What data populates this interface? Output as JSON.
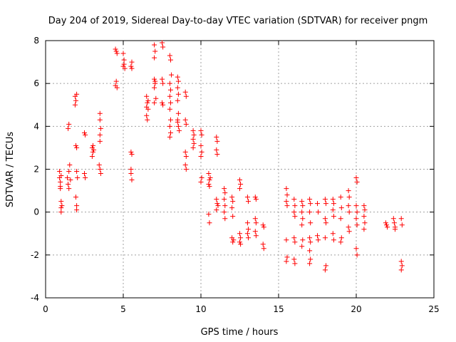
{
  "chart_data": {
    "type": "scatter",
    "title": "Day 204 of 2019, Sidereal Day-to-day VTEC variation (SDTVAR) for receiver pngm",
    "xlabel": "GPS time / hours",
    "ylabel": "SDTVAR / TECUs",
    "xlim": [
      0,
      25
    ],
    "ylim": [
      -4,
      8
    ],
    "xticks": [
      0,
      5,
      10,
      15,
      20,
      25
    ],
    "yticks": [
      -4,
      -2,
      0,
      2,
      4,
      6,
      8
    ],
    "grid": true,
    "marker": "plus",
    "color": "#ff0000",
    "series": [
      {
        "name": "SDTVAR",
        "points": [
          [
            0.9,
            1.9
          ],
          [
            0.9,
            1.6
          ],
          [
            0.95,
            1.4
          ],
          [
            0.95,
            1.1
          ],
          [
            1.0,
            0.5
          ],
          [
            1.0,
            0.2
          ],
          [
            1.0,
            0.0
          ],
          [
            1.0,
            1.7
          ],
          [
            0.95,
            1.2
          ],
          [
            1.05,
            0.3
          ],
          [
            1.4,
            1.6
          ],
          [
            1.45,
            1.3
          ],
          [
            1.5,
            1.9
          ],
          [
            1.5,
            1.1
          ],
          [
            1.45,
            3.9
          ],
          [
            1.5,
            4.1
          ],
          [
            1.55,
            2.2
          ],
          [
            1.6,
            1.5
          ],
          [
            1.9,
            5.4
          ],
          [
            1.95,
            5.2
          ],
          [
            2.0,
            5.5
          ],
          [
            1.9,
            5.0
          ],
          [
            1.95,
            3.1
          ],
          [
            2.0,
            3.0
          ],
          [
            1.95,
            0.7
          ],
          [
            2.0,
            0.3
          ],
          [
            2.0,
            0.1
          ],
          [
            2.0,
            1.9
          ],
          [
            2.05,
            1.6
          ],
          [
            2.5,
            3.7
          ],
          [
            2.55,
            3.6
          ],
          [
            2.5,
            1.8
          ],
          [
            2.55,
            1.6
          ],
          [
            3.0,
            3.0
          ],
          [
            3.05,
            2.8
          ],
          [
            3.0,
            2.6
          ],
          [
            3.1,
            2.9
          ],
          [
            3.05,
            3.1
          ],
          [
            3.5,
            4.6
          ],
          [
            3.5,
            4.3
          ],
          [
            3.55,
            3.9
          ],
          [
            3.5,
            3.6
          ],
          [
            3.5,
            3.3
          ],
          [
            3.45,
            2.2
          ],
          [
            3.5,
            2.0
          ],
          [
            3.55,
            1.8
          ],
          [
            4.5,
            7.6
          ],
          [
            4.55,
            7.5
          ],
          [
            4.6,
            7.4
          ],
          [
            4.5,
            5.9
          ],
          [
            4.55,
            6.1
          ],
          [
            4.6,
            5.8
          ],
          [
            5.0,
            7.4
          ],
          [
            5.05,
            7.1
          ],
          [
            5.0,
            6.8
          ],
          [
            5.1,
            6.7
          ],
          [
            5.05,
            6.9
          ],
          [
            5.5,
            6.8
          ],
          [
            5.55,
            6.7
          ],
          [
            5.55,
            7.0
          ],
          [
            5.5,
            2.8
          ],
          [
            5.55,
            2.7
          ],
          [
            5.5,
            1.8
          ],
          [
            5.55,
            1.5
          ],
          [
            5.5,
            2.0
          ],
          [
            6.5,
            5.4
          ],
          [
            6.55,
            5.1
          ],
          [
            6.6,
            4.8
          ],
          [
            6.5,
            4.5
          ],
          [
            6.55,
            4.3
          ],
          [
            6.6,
            5.2
          ],
          [
            6.5,
            4.9
          ],
          [
            7.0,
            7.8
          ],
          [
            7.05,
            7.5
          ],
          [
            7.0,
            7.2
          ],
          [
            7.0,
            6.2
          ],
          [
            7.05,
            6.0
          ],
          [
            7.0,
            5.8
          ],
          [
            7.1,
            5.3
          ],
          [
            7.0,
            5.1
          ],
          [
            7.05,
            6.1
          ],
          [
            7.5,
            7.9
          ],
          [
            7.55,
            7.7
          ],
          [
            7.5,
            6.2
          ],
          [
            7.55,
            6.0
          ],
          [
            7.5,
            5.1
          ],
          [
            7.55,
            5.0
          ],
          [
            8.0,
            7.3
          ],
          [
            8.05,
            7.1
          ],
          [
            8.0,
            6.0
          ],
          [
            8.05,
            5.7
          ],
          [
            8.0,
            5.4
          ],
          [
            8.05,
            5.1
          ],
          [
            8.0,
            4.8
          ],
          [
            8.05,
            4.3
          ],
          [
            8.0,
            4.0
          ],
          [
            8.05,
            3.7
          ],
          [
            8.0,
            3.5
          ],
          [
            8.1,
            6.4
          ],
          [
            8.5,
            6.3
          ],
          [
            8.55,
            6.1
          ],
          [
            8.5,
            5.8
          ],
          [
            8.55,
            5.5
          ],
          [
            8.5,
            5.2
          ],
          [
            8.55,
            4.6
          ],
          [
            8.5,
            4.3
          ],
          [
            8.55,
            4.0
          ],
          [
            8.6,
            3.8
          ],
          [
            8.5,
            4.2
          ],
          [
            9.0,
            5.6
          ],
          [
            9.05,
            5.4
          ],
          [
            9.0,
            4.3
          ],
          [
            9.05,
            4.1
          ],
          [
            9.0,
            2.8
          ],
          [
            9.05,
            2.6
          ],
          [
            9.0,
            2.2
          ],
          [
            9.05,
            2.0
          ],
          [
            9.5,
            3.8
          ],
          [
            9.55,
            3.6
          ],
          [
            9.5,
            3.4
          ],
          [
            9.55,
            3.2
          ],
          [
            9.5,
            3.0
          ],
          [
            10.0,
            3.8
          ],
          [
            10.05,
            3.6
          ],
          [
            10.0,
            3.1
          ],
          [
            10.05,
            2.8
          ],
          [
            10.0,
            2.6
          ],
          [
            10.05,
            1.6
          ],
          [
            10.0,
            1.4
          ],
          [
            10.5,
            1.8
          ],
          [
            10.55,
            1.5
          ],
          [
            10.5,
            1.3
          ],
          [
            10.55,
            1.2
          ],
          [
            10.5,
            -0.1
          ],
          [
            10.55,
            -0.5
          ],
          [
            10.6,
            1.6
          ],
          [
            11.0,
            3.5
          ],
          [
            11.05,
            3.3
          ],
          [
            11.0,
            2.9
          ],
          [
            11.05,
            2.7
          ],
          [
            11.0,
            0.6
          ],
          [
            11.05,
            0.4
          ],
          [
            11.0,
            0.1
          ],
          [
            11.1,
            0.3
          ],
          [
            11.5,
            1.1
          ],
          [
            11.55,
            0.9
          ],
          [
            11.5,
            0.6
          ],
          [
            11.55,
            0.3
          ],
          [
            11.5,
            0.0
          ],
          [
            11.55,
            -0.3
          ],
          [
            12.0,
            0.7
          ],
          [
            12.05,
            0.5
          ],
          [
            12.0,
            0.2
          ],
          [
            12.05,
            -0.2
          ],
          [
            12.0,
            -1.2
          ],
          [
            12.05,
            -1.4
          ],
          [
            12.1,
            -1.3
          ],
          [
            12.5,
            1.5
          ],
          [
            12.55,
            1.3
          ],
          [
            12.5,
            1.1
          ],
          [
            12.5,
            -1.0
          ],
          [
            12.55,
            -1.2
          ],
          [
            12.5,
            -1.4
          ],
          [
            12.55,
            -1.5
          ],
          [
            13.0,
            0.7
          ],
          [
            13.05,
            0.5
          ],
          [
            13.0,
            -0.5
          ],
          [
            13.05,
            -0.8
          ],
          [
            13.0,
            -1.0
          ],
          [
            13.05,
            -1.2
          ],
          [
            13.5,
            0.7
          ],
          [
            13.55,
            0.6
          ],
          [
            13.5,
            -0.3
          ],
          [
            13.55,
            -0.5
          ],
          [
            13.5,
            -0.9
          ],
          [
            13.55,
            -1.1
          ],
          [
            14.0,
            -0.6
          ],
          [
            14.05,
            -0.7
          ],
          [
            14.0,
            -1.5
          ],
          [
            14.05,
            -1.7
          ],
          [
            15.5,
            1.1
          ],
          [
            15.55,
            0.8
          ],
          [
            15.5,
            0.5
          ],
          [
            15.55,
            0.3
          ],
          [
            15.5,
            -1.3
          ],
          [
            15.55,
            -2.1
          ],
          [
            15.5,
            -2.3
          ],
          [
            16.0,
            0.6
          ],
          [
            16.05,
            0.3
          ],
          [
            16.0,
            0.0
          ],
          [
            16.05,
            -0.2
          ],
          [
            16.0,
            -1.2
          ],
          [
            16.05,
            -1.4
          ],
          [
            16.0,
            -2.2
          ],
          [
            16.05,
            -2.4
          ],
          [
            16.5,
            0.5
          ],
          [
            16.55,
            0.3
          ],
          [
            16.5,
            0.0
          ],
          [
            16.55,
            -0.3
          ],
          [
            16.5,
            -0.6
          ],
          [
            16.55,
            -1.3
          ],
          [
            16.5,
            -1.6
          ],
          [
            17.0,
            0.6
          ],
          [
            17.05,
            0.4
          ],
          [
            17.0,
            0.0
          ],
          [
            17.05,
            -0.5
          ],
          [
            17.0,
            -1.2
          ],
          [
            17.05,
            -1.4
          ],
          [
            17.0,
            -1.8
          ],
          [
            17.05,
            -2.2
          ],
          [
            17.0,
            -2.4
          ],
          [
            17.5,
            0.4
          ],
          [
            17.55,
            0.0
          ],
          [
            17.5,
            -1.1
          ],
          [
            17.55,
            -1.3
          ],
          [
            18.0,
            0.6
          ],
          [
            18.05,
            0.4
          ],
          [
            18.0,
            -0.3
          ],
          [
            18.05,
            -0.5
          ],
          [
            18.0,
            -1.2
          ],
          [
            18.05,
            -2.5
          ],
          [
            18.0,
            -2.7
          ],
          [
            18.5,
            0.6
          ],
          [
            18.55,
            0.4
          ],
          [
            18.5,
            0.1
          ],
          [
            18.55,
            -0.2
          ],
          [
            18.5,
            -1.0
          ],
          [
            18.55,
            -1.3
          ],
          [
            19.0,
            0.7
          ],
          [
            19.05,
            0.2
          ],
          [
            19.0,
            -0.3
          ],
          [
            19.05,
            -1.2
          ],
          [
            19.0,
            -1.4
          ],
          [
            19.5,
            1.0
          ],
          [
            19.55,
            0.7
          ],
          [
            19.5,
            0.3
          ],
          [
            19.55,
            0.0
          ],
          [
            19.5,
            -0.7
          ],
          [
            19.55,
            -0.9
          ],
          [
            20.0,
            1.6
          ],
          [
            20.05,
            1.4
          ],
          [
            20.0,
            0.3
          ],
          [
            20.05,
            0.0
          ],
          [
            20.0,
            -0.3
          ],
          [
            20.05,
            -0.6
          ],
          [
            20.0,
            -1.7
          ],
          [
            20.05,
            -2.0
          ],
          [
            20.5,
            0.3
          ],
          [
            20.55,
            0.1
          ],
          [
            20.5,
            -0.2
          ],
          [
            20.55,
            -0.5
          ],
          [
            20.5,
            -0.8
          ],
          [
            21.9,
            -0.5
          ],
          [
            21.95,
            -0.6
          ],
          [
            22.0,
            -0.7
          ],
          [
            22.4,
            -0.3
          ],
          [
            22.45,
            -0.5
          ],
          [
            22.5,
            -0.7
          ],
          [
            22.5,
            -0.8
          ],
          [
            22.9,
            -0.3
          ],
          [
            22.95,
            -0.6
          ],
          [
            22.9,
            -2.3
          ],
          [
            22.95,
            -2.5
          ],
          [
            22.9,
            -2.7
          ]
        ]
      }
    ]
  }
}
